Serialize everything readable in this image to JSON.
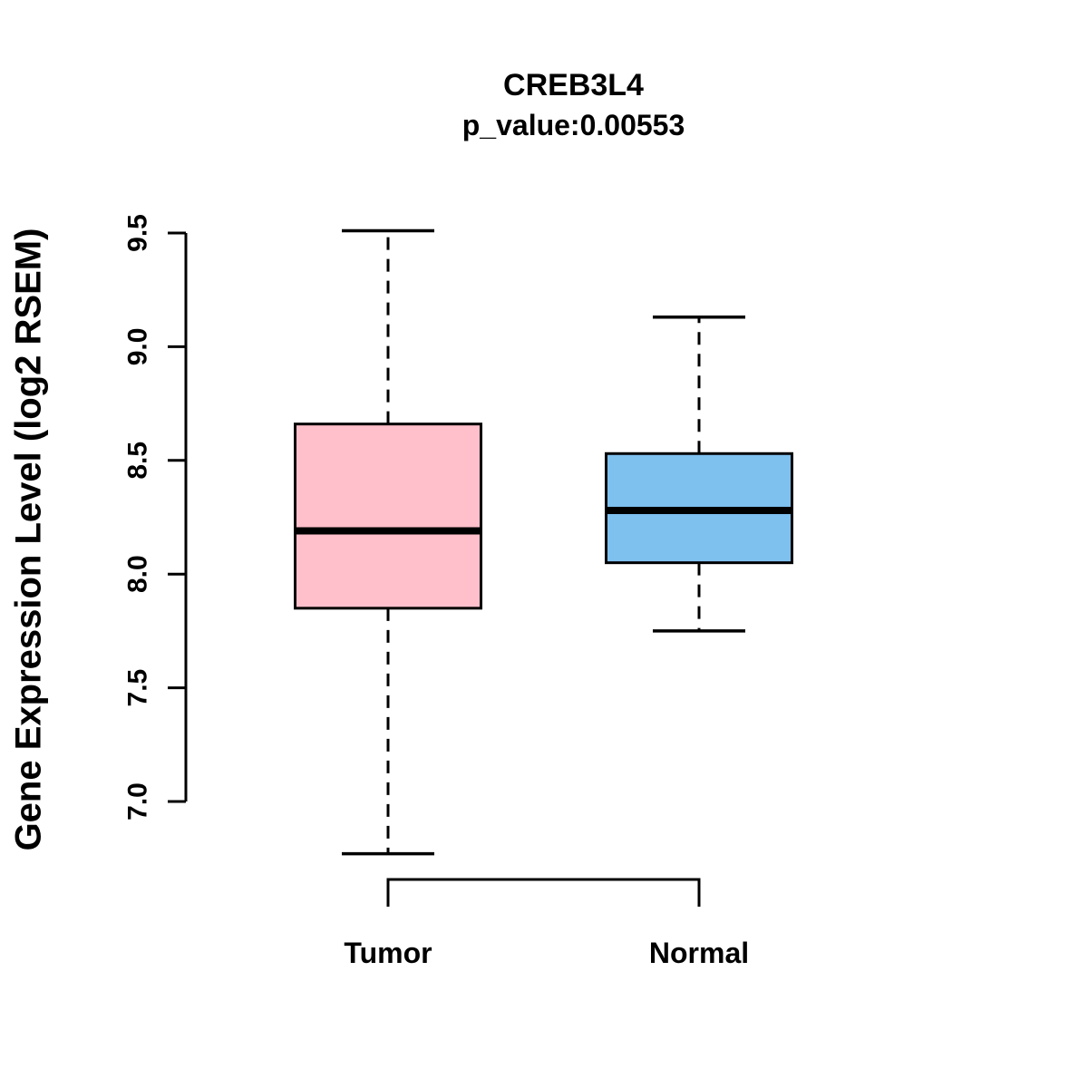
{
  "chart_data": {
    "type": "boxplot",
    "title": "CREB3L4",
    "subtitle": "p_value:0.00553",
    "ylabel": "Gene Expression Level (log2 RSEM)",
    "categories": [
      "Tumor",
      "Normal"
    ],
    "yticks": [
      7.0,
      7.5,
      8.0,
      8.5,
      9.0,
      9.5
    ],
    "ylim": [
      6.6,
      9.6
    ],
    "grid": false,
    "legend": "none",
    "boxes": [
      {
        "label": "Tumor",
        "fill": "#FFC0CB",
        "whisker_low": 6.77,
        "q1": 7.85,
        "median": 8.19,
        "q3": 8.66,
        "whisker_high": 9.51
      },
      {
        "label": "Normal",
        "fill": "#7EC0EE",
        "whisker_low": 7.75,
        "q1": 8.05,
        "median": 8.28,
        "q3": 8.53,
        "whisker_high": 9.13
      }
    ],
    "colors": {
      "tumor_fill": "#FFC0CB",
      "normal_fill": "#7EC0EE",
      "stroke": "#000000",
      "background": "#FFFFFF"
    }
  }
}
